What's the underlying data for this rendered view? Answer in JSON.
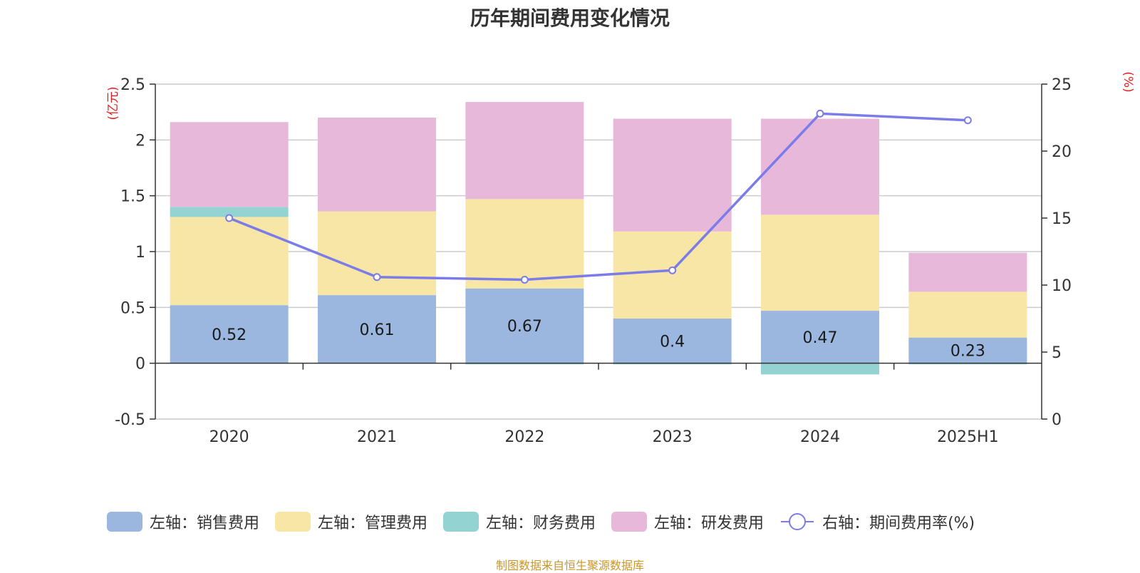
{
  "title": "历年期间费用变化情况",
  "source_note": "制图数据来自恒生聚源数据库",
  "left_axis_unit": "(亿元)",
  "right_axis_unit": "(%)",
  "colors": {
    "sales": "#9bb7e0",
    "admin": "#f7e6a6",
    "finance": "#93d4d3",
    "rnd": "#e8b8da",
    "rate": "#7b7ce8"
  },
  "legend": [
    {
      "key": "sales",
      "label": "左轴：销售费用",
      "kind": "bar"
    },
    {
      "key": "admin",
      "label": "左轴：管理费用",
      "kind": "bar"
    },
    {
      "key": "finance",
      "label": "左轴：财务费用",
      "kind": "bar"
    },
    {
      "key": "rnd",
      "label": "左轴：研发费用",
      "kind": "bar"
    },
    {
      "key": "rate",
      "label": "右轴：期间费用率(%)",
      "kind": "line"
    }
  ],
  "chart_data": {
    "type": "bar",
    "stacked": true,
    "categories": [
      "2020",
      "2021",
      "2022",
      "2023",
      "2024",
      "2025H1"
    ],
    "series": [
      {
        "key": "sales",
        "name": "左轴：销售费用",
        "axis": "left",
        "values": [
          0.52,
          0.61,
          0.67,
          0.4,
          0.47,
          0.23
        ],
        "labels": [
          "0.52",
          "0.61",
          "0.67",
          "0.4",
          "0.47",
          "0.23"
        ]
      },
      {
        "key": "admin",
        "name": "左轴：管理费用",
        "axis": "left",
        "values": [
          0.79,
          0.75,
          0.8,
          0.78,
          0.86,
          0.41
        ]
      },
      {
        "key": "finance",
        "name": "左轴：财务费用",
        "axis": "left",
        "values": [
          0.09,
          0.0,
          -0.01,
          -0.01,
          -0.1,
          -0.01
        ]
      },
      {
        "key": "rnd",
        "name": "左轴：研发费用",
        "axis": "left",
        "values": [
          0.76,
          0.84,
          0.87,
          1.01,
          0.86,
          0.35
        ]
      },
      {
        "key": "rate",
        "name": "右轴：期间费用率(%)",
        "axis": "right",
        "type": "line",
        "values": [
          15.0,
          10.6,
          10.4,
          11.1,
          22.8,
          22.3
        ]
      }
    ],
    "left_axis": {
      "min": -0.5,
      "max": 2.5,
      "ticks": [
        -0.5,
        0,
        0.5,
        1,
        1.5,
        2,
        2.5
      ],
      "tick_labels": [
        "-0.5",
        "0",
        "0.5",
        "1",
        "1.5",
        "2",
        "2.5"
      ]
    },
    "right_axis": {
      "min": 0,
      "max": 25,
      "ticks": [
        0,
        5,
        10,
        15,
        20,
        25
      ],
      "tick_labels": [
        "0",
        "5",
        "10",
        "15",
        "20",
        "25"
      ]
    },
    "grid": true,
    "legend_position": "bottom"
  }
}
